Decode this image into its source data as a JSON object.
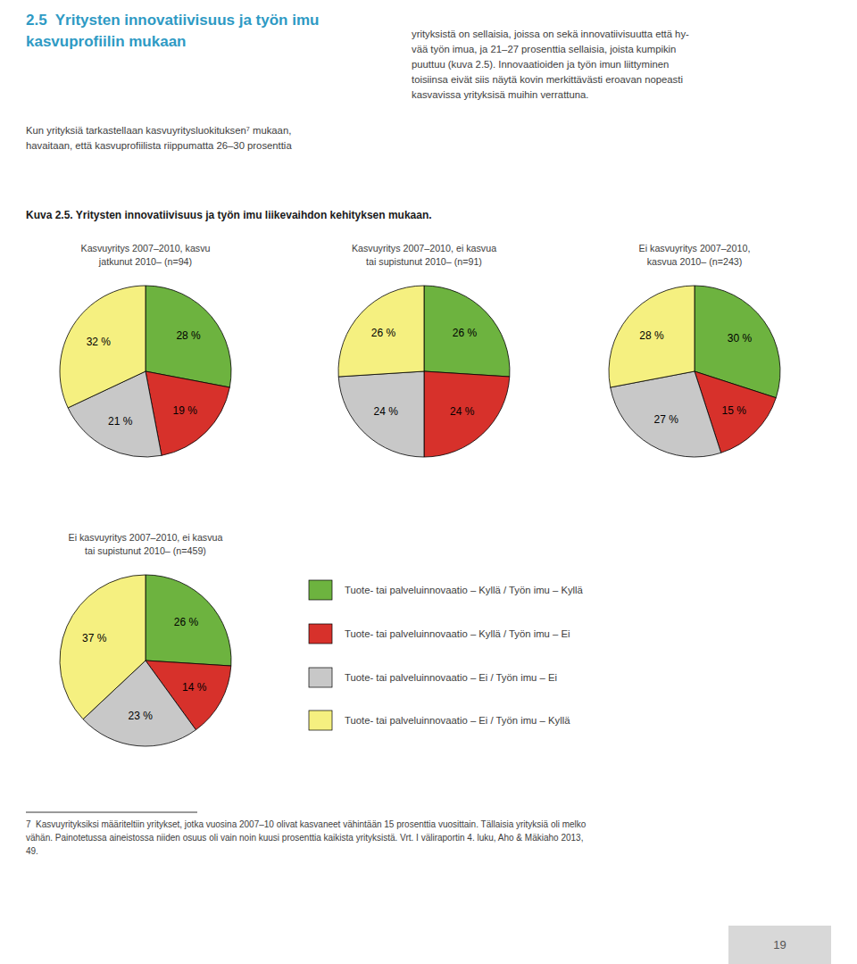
{
  "title": "2.5  Yritysten innovatiivisuus ja työn imu\nkasvuprofiilin mukaan",
  "annotations": [
    "Kun yrityksiä tarkastellaan kasvuyritysluokituksen⁷ mukaan,\nhavaitaan, että kasvuprofiilista riippumatta 26–30 prosenttia",
    "yrityksistä on sellaisia, joissa on sekä innovatiivisuutta että hy-\nvää työn imua, ja 21–27 prosenttia sellaisia, joista kumpikin\npuuttuu (kuva 2.5). Innovaatioiden ja työn imun liittyminen\ntoisiinsa eivät siis näytä kovin merkittävästi eroavan nopeasti\nkasvavissa yrityksisä muihin verrattuna.",
    "Kuva 2.5. Yritysten innovatiivisuus ja työn imu liikevaihdon kehityksen mukaan.",
    "7  Kasvuyrityksiksi määriteltiin yritykset, jotka vuosina 2007–10 olivat kasvaneet vähintään 15 prosenttia vuosittain. Tällaisia yrityksiä oli melko\nvähän. Painotetussa aineistossa niiden osuus oli vain noin kuusi prosenttia kaikista yrityksistä. Vrt. I väliraportin 4. luku, Aho & Mäkiaho 2013,\n49.",
    "19"
  ],
  "chart_data": [
    {
      "type": "pie",
      "title": "Kasvuyritys 2007–2010, kasvu\njatkunut 2010– (n=94)",
      "categories": [
        "Tuote- tai palveluinnovaatio – Kyllä / Työn imu – Kyllä",
        "Tuote- tai palveluinnovaatio – Kyllä / Työn imu – Ei",
        "Tuote- tai palveluinnovaatio – Ei / Työn imu – Ei",
        "Tuote- tai palveluinnovaatio – Ei / Työn imu – Kyllä"
      ],
      "values": [
        28,
        19,
        21,
        32
      ],
      "value_labels": [
        "28 %",
        "19 %",
        "21 %",
        "32 %"
      ],
      "colors": [
        "#6db33f",
        "#d7312b",
        "#c8c8c8",
        "#f5f080"
      ],
      "data_labels": true
    },
    {
      "type": "pie",
      "title": "Kasvuyritys 2007–2010, ei kasvua\ntai supistunut 2010– (n=91)",
      "categories": [
        "Tuote- tai palveluinnovaatio – Kyllä / Työn imu – Kyllä",
        "Tuote- tai palveluinnovaatio – Kyllä / Työn imu – Ei",
        "Tuote- tai palveluinnovaatio – Ei / Työn imu – Ei",
        "Tuote- tai palveluinnovaatio – Ei / Työn imu – Kyllä"
      ],
      "values": [
        26,
        24,
        24,
        26
      ],
      "value_labels": [
        "26 %",
        "24 %",
        "24 %",
        "26 %"
      ],
      "colors": [
        "#6db33f",
        "#d7312b",
        "#c8c8c8",
        "#f5f080"
      ],
      "data_labels": true
    },
    {
      "type": "pie",
      "title": "Ei kasvuyritys 2007–2010,\nkasvua 2010– (n=243)",
      "categories": [
        "Tuote- tai palveluinnovaatio – Kyllä / Työn imu – Kyllä",
        "Tuote- tai palveluinnovaatio – Kyllä / Työn imu – Ei",
        "Tuote- tai palveluinnovaatio – Ei / Työn imu – Ei",
        "Tuote- tai palveluinnovaatio – Ei / Työn imu – Kyllä"
      ],
      "values": [
        30,
        15,
        27,
        28
      ],
      "value_labels": [
        "30 %",
        "15 %",
        "27 %",
        "28 %"
      ],
      "colors": [
        "#6db33f",
        "#d7312b",
        "#c8c8c8",
        "#f5f080"
      ],
      "data_labels": true
    },
    {
      "type": "pie",
      "title": "Ei kasvuyritys 2007–2010, ei kasvua\ntai supistunut 2010– (n=459)",
      "categories": [
        "Tuote- tai palveluinnovaatio – Kyllä / Työn imu – Kyllä",
        "Tuote- tai palveluinnovaatio – Kyllä / Työn imu – Ei",
        "Tuote- tai palveluinnovaatio – Ei / Työn imu – Ei",
        "Tuote- tai palveluinnovaatio – Ei / Työn imu – Kyllä"
      ],
      "values": [
        26,
        14,
        23,
        37
      ],
      "value_labels": [
        "26 %",
        "14 %",
        "23 %",
        "37 %"
      ],
      "colors": [
        "#6db33f",
        "#d7312b",
        "#c8c8c8",
        "#f5f080"
      ],
      "data_labels": true,
      "legend": "right"
    }
  ]
}
